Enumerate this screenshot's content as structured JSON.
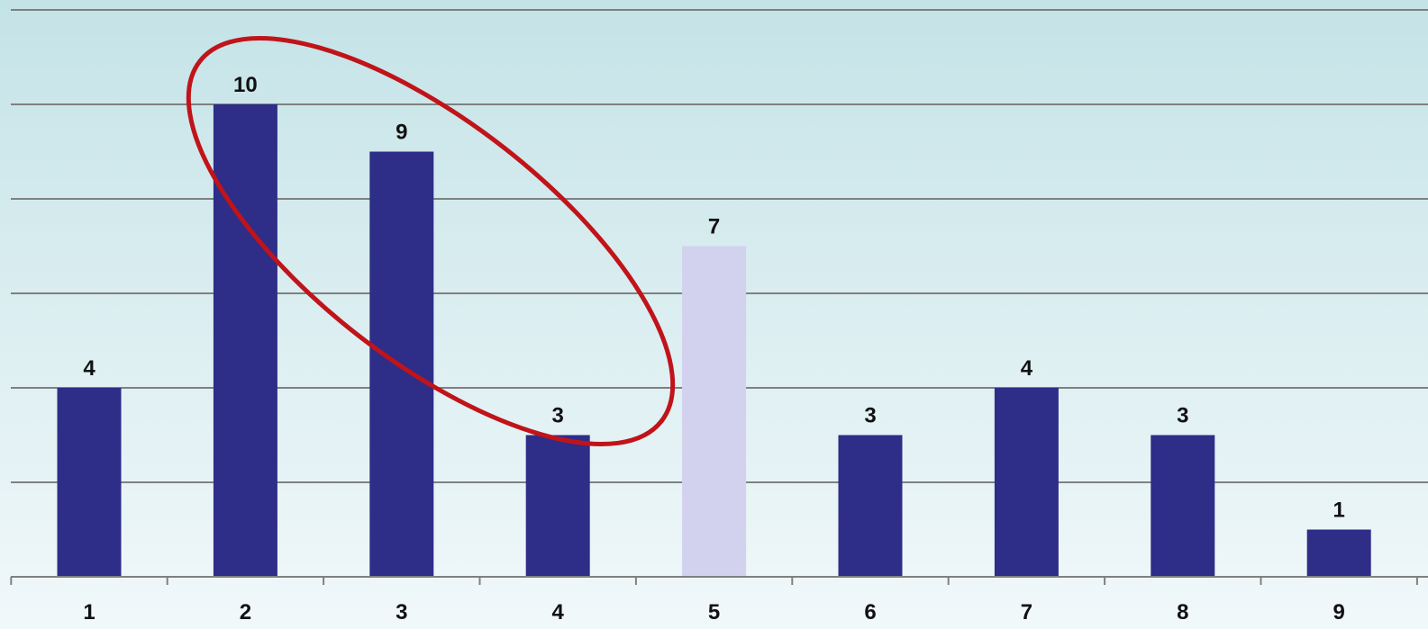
{
  "chart_data": {
    "type": "bar",
    "title": "",
    "xlabel": "",
    "ylabel": "",
    "categories": [
      "1",
      "2",
      "3",
      "4",
      "5",
      "6",
      "7",
      "8",
      "9"
    ],
    "values": [
      4,
      10,
      9,
      3,
      7,
      3,
      4,
      3,
      1
    ],
    "data_labels": [
      "4",
      "10",
      "9",
      "3",
      "7",
      "3",
      "4",
      "3",
      "1"
    ],
    "ylim": [
      0,
      12
    ],
    "grid": true,
    "legend": "none",
    "colors": {
      "bar": "#2e2d88",
      "highlight_bar": "#d2d2ef",
      "gridline": "#808080",
      "axis": "#808080",
      "annotation_ellipse": "#c0141a"
    },
    "highlight_category": "5",
    "annotation": "red ellipse enclosing bars 2, 3 and 4"
  }
}
